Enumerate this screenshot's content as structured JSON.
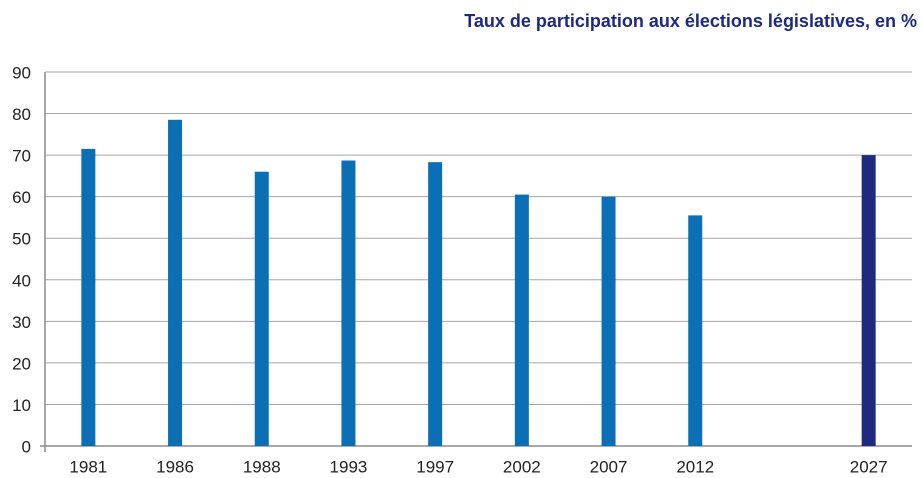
{
  "chart_data": {
    "type": "bar",
    "title": "Taux de participation aux élections législatives, en %",
    "categories": [
      "1981",
      "1986",
      "1988",
      "1993",
      "1997",
      "2002",
      "2007",
      "2012",
      null,
      "2027"
    ],
    "values": [
      71.5,
      78.5,
      66,
      68.7,
      68.3,
      60.5,
      60,
      55.5,
      null,
      70
    ],
    "colors": [
      "#0a6fb5",
      "#0a6fb5",
      "#0a6fb5",
      "#0a6fb5",
      "#0a6fb5",
      "#0a6fb5",
      "#0a6fb5",
      "#0a6fb5",
      null,
      "#1d2a80"
    ],
    "ylim": [
      0,
      90
    ],
    "yticks": [
      0,
      10,
      20,
      30,
      40,
      50,
      60,
      70,
      80,
      90
    ],
    "grid": true
  }
}
